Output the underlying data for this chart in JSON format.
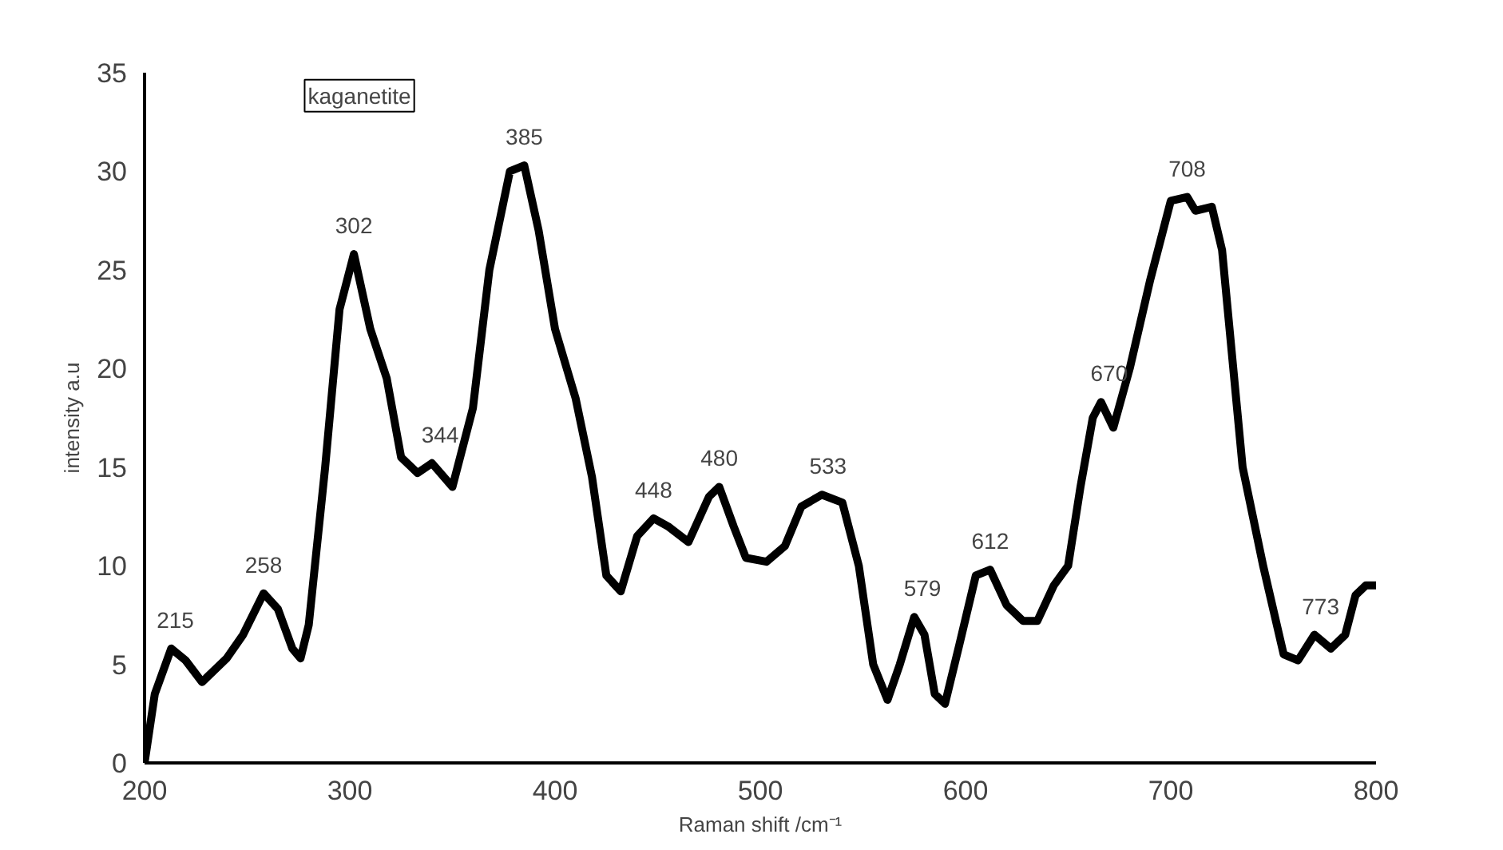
{
  "chart_data": {
    "type": "line",
    "xlabel": "Raman shift /cm⁻¹",
    "ylabel": "intensity a.u",
    "x": [
      200,
      205,
      213,
      220,
      228,
      240,
      248,
      258,
      265,
      272,
      276,
      280,
      288,
      295,
      302,
      310,
      318,
      325,
      333,
      340,
      350,
      360,
      368,
      378,
      385,
      392,
      400,
      410,
      418,
      425,
      432,
      440,
      448,
      455,
      465,
      475,
      480,
      487,
      493,
      503,
      512,
      520,
      530,
      540,
      548,
      555,
      562,
      568,
      575,
      580,
      585,
      590,
      597,
      605,
      612,
      620,
      628,
      635,
      643,
      650,
      656,
      662,
      666,
      672,
      680,
      690,
      700,
      708,
      712,
      720,
      725,
      735,
      745,
      755,
      762,
      770,
      778,
      785,
      790,
      795,
      800
    ],
    "series": [
      {
        "color": "#000000",
        "values": [
          0,
          3.5,
          5.8,
          5.2,
          4.1,
          5.3,
          6.5,
          8.6,
          7.8,
          5.8,
          5.3,
          7,
          15,
          23,
          25.8,
          22,
          19.5,
          15.5,
          14.7,
          15.2,
          14,
          18,
          25,
          30,
          30.3,
          27,
          22,
          18.5,
          14.5,
          9.5,
          8.7,
          11.5,
          12.4,
          12,
          11.2,
          13.5,
          14,
          12,
          10.4,
          10.2,
          11,
          13,
          13.6,
          13.2,
          10,
          5,
          3.2,
          5,
          7.4,
          6.5,
          3.5,
          3,
          6,
          9.5,
          9.8,
          8,
          7.2,
          7.2,
          9,
          10,
          14,
          17.5,
          18.3,
          17,
          20,
          24.5,
          28.5,
          28.7,
          28,
          28.2,
          26,
          15,
          10,
          5.5,
          5.2,
          6.5,
          5.8,
          6.5,
          8.5,
          9,
          9
        ]
      }
    ],
    "xlim": [
      200,
      800
    ],
    "xticks": [
      200,
      300,
      400,
      500,
      600,
      700,
      800
    ],
    "ylim": [
      0,
      35
    ],
    "yticks": [
      0,
      5,
      10,
      15,
      20,
      25,
      30,
      35
    ],
    "grid": false,
    "marker": "none",
    "line_style": "solid",
    "annotations": [
      "kaganetite",
      {
        "text": "215",
        "x": 215,
        "y": 5.8
      },
      {
        "text": "258",
        "x": 258,
        "y": 8.6
      },
      {
        "text": "302",
        "x": 302,
        "y": 25.8
      },
      {
        "text": "344",
        "x": 344,
        "y": 15.2
      },
      {
        "text": "385",
        "x": 385,
        "y": 30.3
      },
      {
        "text": "448",
        "x": 448,
        "y": 12.4
      },
      {
        "text": "480",
        "x": 480,
        "y": 14
      },
      {
        "text": "533",
        "x": 533,
        "y": 13.6
      },
      {
        "text": "579",
        "x": 579,
        "y": 7.4
      },
      {
        "text": "612",
        "x": 612,
        "y": 9.8
      },
      {
        "text": "670",
        "x": 670,
        "y": 18.3
      },
      {
        "text": "708",
        "x": 708,
        "y": 28.7
      },
      {
        "text": "773",
        "x": 773,
        "y": 6.5
      }
    ]
  }
}
